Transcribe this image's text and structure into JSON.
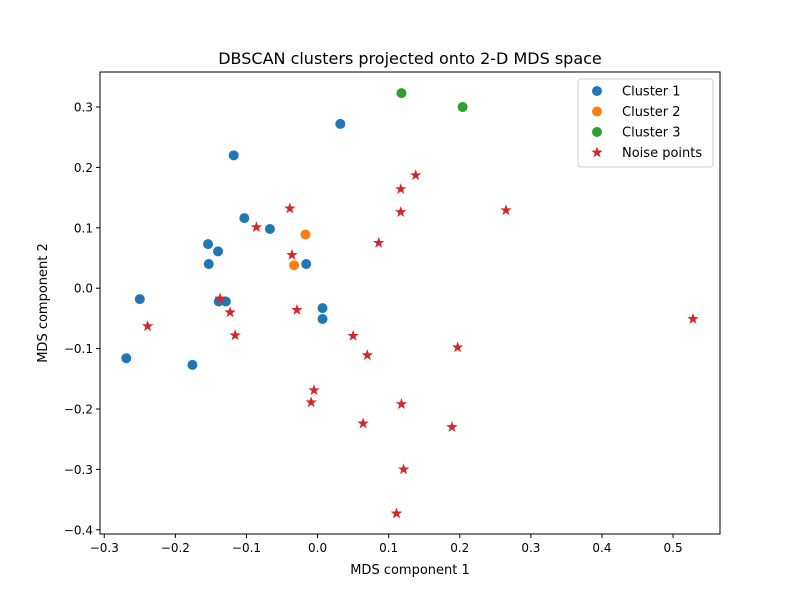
{
  "chart_data": {
    "type": "scatter",
    "title": "DBSCAN clusters projected onto 2-D MDS space",
    "xlabel": "MDS component 1",
    "ylabel": "MDS component 2",
    "xlim": [
      -0.306,
      0.566
    ],
    "ylim": [
      -0.407,
      0.358
    ],
    "xticks": [
      -0.3,
      -0.2,
      -0.1,
      0.0,
      0.1,
      0.2,
      0.3,
      0.4,
      0.5
    ],
    "xtick_labels": [
      "−0.3",
      "−0.2",
      "−0.1",
      "0.0",
      "0.1",
      "0.2",
      "0.3",
      "0.4",
      "0.5"
    ],
    "yticks": [
      -0.4,
      -0.3,
      -0.2,
      -0.1,
      0.0,
      0.1,
      0.2,
      0.3
    ],
    "ytick_labels": [
      "−0.4",
      "−0.3",
      "−0.2",
      "−0.1",
      "0.0",
      "0.1",
      "0.2",
      "0.3"
    ],
    "grid": false,
    "legend_position": "top-right",
    "series": [
      {
        "name": "Cluster 1",
        "marker": "circle",
        "color": "#1f77b4",
        "points": [
          [
            0.032,
            0.272
          ],
          [
            -0.118,
            0.22
          ],
          [
            -0.103,
            0.116
          ],
          [
            -0.067,
            0.098
          ],
          [
            -0.154,
            0.073
          ],
          [
            -0.14,
            0.061
          ],
          [
            -0.153,
            0.04
          ],
          [
            -0.016,
            0.04
          ],
          [
            -0.25,
            -0.018
          ],
          [
            -0.139,
            -0.022
          ],
          [
            -0.129,
            -0.022
          ],
          [
            0.007,
            -0.033
          ],
          [
            0.007,
            -0.051
          ],
          [
            -0.176,
            -0.127
          ],
          [
            -0.269,
            -0.116
          ]
        ]
      },
      {
        "name": "Cluster 2",
        "marker": "circle",
        "color": "#ff7f0e",
        "points": [
          [
            -0.017,
            0.089
          ],
          [
            -0.033,
            0.038
          ]
        ]
      },
      {
        "name": "Cluster 3",
        "marker": "circle",
        "color": "#2ca02c",
        "points": [
          [
            0.118,
            0.323
          ],
          [
            0.204,
            0.3
          ]
        ]
      },
      {
        "name": "Noise points",
        "marker": "star",
        "color": "#d62728",
        "points": [
          [
            0.138,
            0.187
          ],
          [
            0.117,
            0.164
          ],
          [
            0.117,
            0.126
          ],
          [
            0.265,
            0.129
          ],
          [
            -0.039,
            0.132
          ],
          [
            -0.086,
            0.101
          ],
          [
            0.086,
            0.075
          ],
          [
            -0.036,
            0.055
          ],
          [
            -0.137,
            -0.017
          ],
          [
            -0.123,
            -0.04
          ],
          [
            -0.116,
            -0.078
          ],
          [
            -0.239,
            -0.063
          ],
          [
            -0.029,
            -0.036
          ],
          [
            0.05,
            -0.079
          ],
          [
            0.07,
            -0.111
          ],
          [
            0.197,
            -0.098
          ],
          [
            0.528,
            -0.051
          ],
          [
            -0.005,
            -0.169
          ],
          [
            -0.009,
            -0.189
          ],
          [
            0.118,
            -0.192
          ],
          [
            0.064,
            -0.224
          ],
          [
            0.189,
            -0.23
          ],
          [
            0.121,
            -0.3
          ],
          [
            0.111,
            -0.373
          ]
        ]
      }
    ]
  }
}
